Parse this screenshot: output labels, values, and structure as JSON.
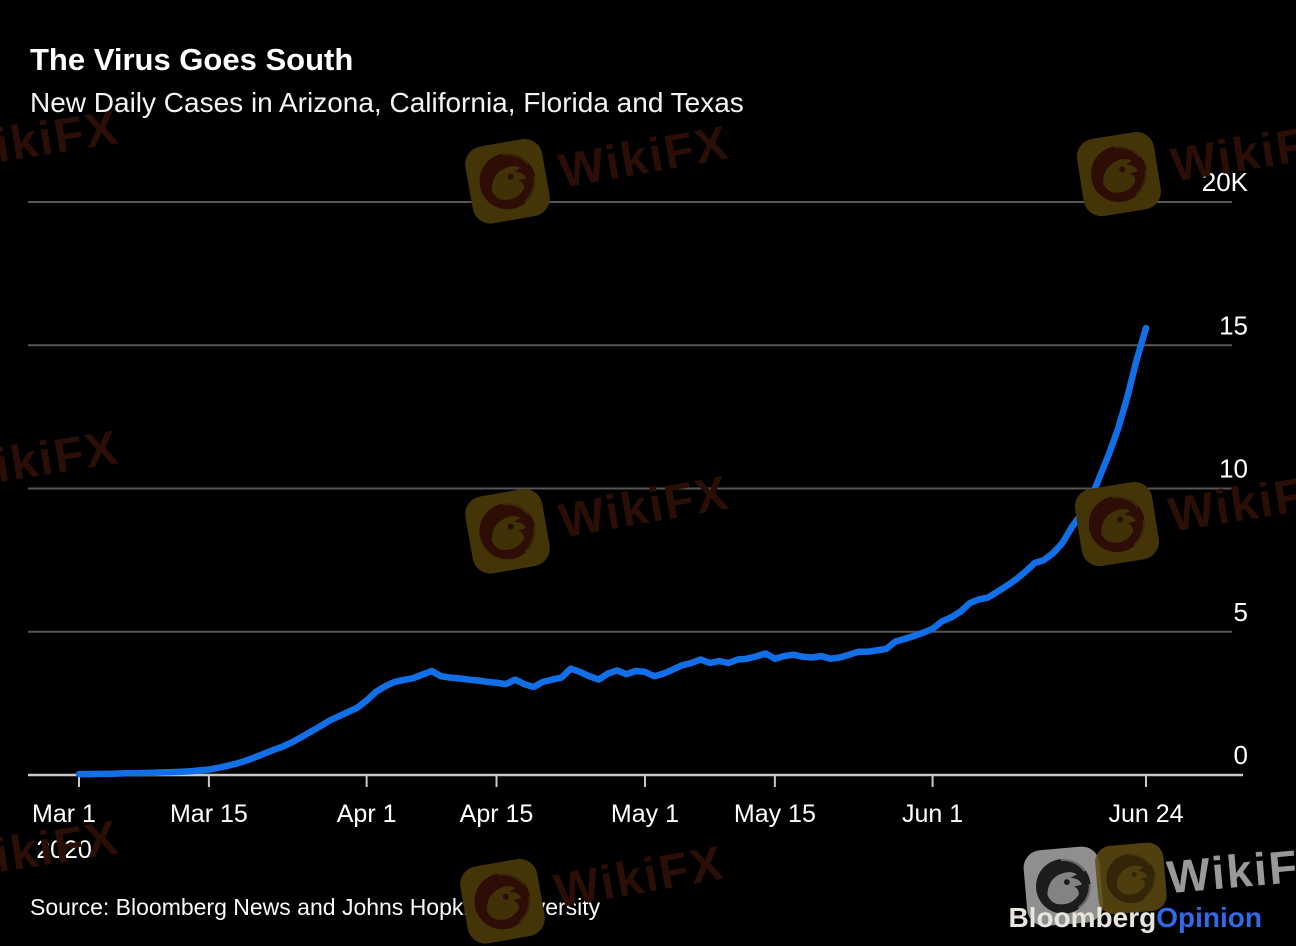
{
  "header": {
    "title": "The Virus Goes South",
    "subtitle": "New Daily Cases in Arizona, California, Florida and Texas"
  },
  "footer": {
    "source": "Source: Bloomberg News and Johns Hopkins University",
    "brand": {
      "bloomberg": "Bloomberg",
      "opinion": "Opinion"
    }
  },
  "watermark": {
    "text": "WikiFX",
    "logo": "wikifx-eagle-logo"
  },
  "colors": {
    "background": "#000000",
    "line": "#1170E8",
    "gridline": "#565656",
    "axis": "#C9C9C9",
    "tick_label": "#FFFFFF",
    "brand_bloomberg": "#E8E5DB",
    "brand_opinion": "#2F6AEB",
    "watermark_dark_text": "#2B0F07",
    "watermark_dark_box": "#433508",
    "watermark_bright_text": "#999999"
  },
  "chart_data": {
    "type": "line",
    "title": "The Virus Goes South",
    "subtitle": "New Daily Cases in Arizona, California, Florida and Texas",
    "x_start": "2020-03-01",
    "x_end": "2020-06-24",
    "grid": true,
    "legend": "none",
    "ylim": [
      0,
      20000
    ],
    "y_ticks": [
      {
        "label": "0",
        "value": 0
      },
      {
        "label": "5",
        "value": 5000
      },
      {
        "label": "10",
        "value": 10000
      },
      {
        "label": "15",
        "value": 15000
      },
      {
        "label": "20K",
        "value": 20000
      }
    ],
    "x_ticks": [
      {
        "label": "Mar 1",
        "sublabel": "2020",
        "day": 0
      },
      {
        "label": "Mar 15",
        "day": 14
      },
      {
        "label": "Apr 1",
        "day": 31
      },
      {
        "label": "Apr 15",
        "day": 45
      },
      {
        "label": "May 1",
        "day": 61
      },
      {
        "label": "May 15",
        "day": 75
      },
      {
        "label": "Jun 1",
        "day": 92
      },
      {
        "label": "Jun 24",
        "day": 115
      }
    ],
    "series": [
      {
        "name": "New daily cases in Arizona, California, Florida and Texas",
        "color": "#1170E8",
        "values": [
          30,
          30,
          40,
          40,
          50,
          60,
          60,
          70,
          80,
          90,
          100,
          110,
          130,
          160,
          190,
          250,
          320,
          400,
          500,
          620,
          750,
          880,
          1000,
          1150,
          1330,
          1520,
          1700,
          1900,
          2050,
          2200,
          2350,
          2600,
          2900,
          3100,
          3250,
          3320,
          3380,
          3500,
          3630,
          3450,
          3400,
          3370,
          3330,
          3300,
          3250,
          3220,
          3170,
          3330,
          3170,
          3070,
          3250,
          3330,
          3400,
          3710,
          3600,
          3450,
          3330,
          3540,
          3650,
          3520,
          3630,
          3600,
          3450,
          3540,
          3680,
          3830,
          3910,
          4030,
          3910,
          3980,
          3910,
          4030,
          4060,
          4140,
          4240,
          4060,
          4150,
          4200,
          4130,
          4100,
          4150,
          4060,
          4100,
          4200,
          4300,
          4300,
          4350,
          4400,
          4660,
          4750,
          4850,
          4970,
          5100,
          5360,
          5500,
          5700,
          6000,
          6130,
          6200,
          6400,
          6600,
          6830,
          7100,
          7400,
          7500,
          7750,
          8100,
          8650,
          9100,
          9600,
          10400,
          11200,
          12100,
          13200,
          14500,
          15600
        ]
      }
    ]
  }
}
